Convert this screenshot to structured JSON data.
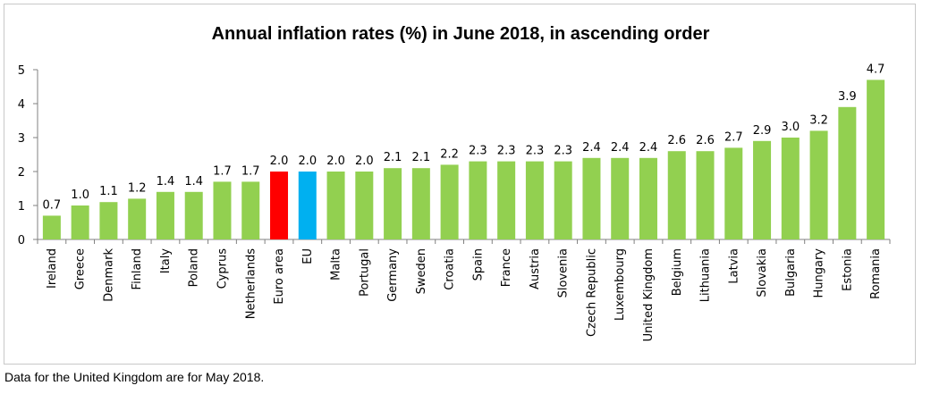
{
  "chart_data": {
    "type": "bar",
    "title": "Annual inflation rates (%) in June 2018, in ascending order",
    "xlabel": "",
    "ylabel": "",
    "ylim": [
      0,
      5
    ],
    "yticks": [
      0,
      1,
      2,
      3,
      4,
      5
    ],
    "grid": false,
    "categories": [
      "Ireland",
      "Greece",
      "Denmark",
      "Finland",
      "Italy",
      "Poland",
      "Cyprus",
      "Netherlands",
      "Euro area",
      "EU",
      "Malta",
      "Portugal",
      "Germany",
      "Sweden",
      "Croatia",
      "Spain",
      "France",
      "Austria",
      "Slovenia",
      "Czech Republic",
      "Luxembourg",
      "United Kingdom",
      "Belgium",
      "Lithuania",
      "Latvia",
      "Slovakia",
      "Bulgaria",
      "Hungary",
      "Estonia",
      "Romania"
    ],
    "values": [
      0.7,
      1.0,
      1.1,
      1.2,
      1.4,
      1.4,
      1.7,
      1.7,
      2.0,
      2.0,
      2.0,
      2.0,
      2.1,
      2.1,
      2.2,
      2.3,
      2.3,
      2.3,
      2.3,
      2.4,
      2.4,
      2.4,
      2.6,
      2.6,
      2.7,
      2.9,
      3.0,
      3.2,
      3.9,
      4.7
    ],
    "value_labels": [
      "0.7",
      "1.0",
      "1.1",
      "1.2",
      "1.4",
      "1.4",
      "1.7",
      "1.7",
      "2.0",
      "2.0",
      "2.0",
      "2.0",
      "2.1",
      "2.1",
      "2.2",
      "2.3",
      "2.3",
      "2.3",
      "2.3",
      "2.4",
      "2.4",
      "2.4",
      "2.6",
      "2.6",
      "2.7",
      "2.9",
      "3.0",
      "3.2",
      "3.9",
      "4.7"
    ],
    "colors": {
      "default": "#92d050",
      "Euro area": "#ff0000",
      "EU": "#00b0f0"
    }
  },
  "footnote": "Data for the United Kingdom are for May 2018."
}
